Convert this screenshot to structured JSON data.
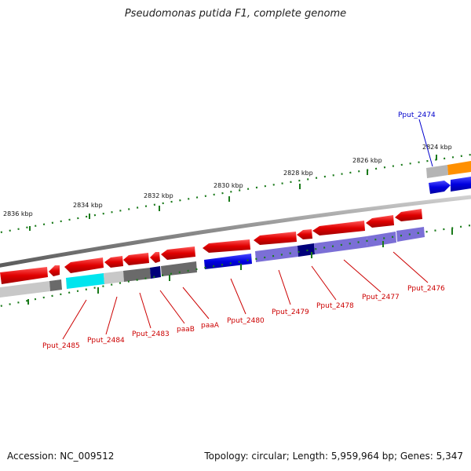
{
  "title": "Pseudomonas putida F1, complete genome",
  "footer": {
    "accession": "Accession: NC_009512",
    "summary": "Topology: circular; Length: 5,959,964 bp; Genes: 5,347"
  },
  "ruler": {
    "labels": [
      "2836 kbp",
      "2834 kbp",
      "2832 kbp",
      "2830 kbp",
      "2828 kbp",
      "2826 kbp",
      "2824 kbp"
    ]
  },
  "genes": [
    {
      "id": "Pput_2485",
      "label": "Pput_2485",
      "color": "#cc0000"
    },
    {
      "id": "Pput_2484",
      "label": "Pput_2484",
      "color": "#cc0000"
    },
    {
      "id": "Pput_2483",
      "label": "Pput_2483",
      "color": "#cc0000"
    },
    {
      "id": "paaB",
      "label": "paaB",
      "color": "#cc0000"
    },
    {
      "id": "paaA",
      "label": "paaA",
      "color": "#cc0000"
    },
    {
      "id": "Pput_2480",
      "label": "Pput_2480",
      "color": "#cc0000"
    },
    {
      "id": "Pput_2479",
      "label": "Pput_2479",
      "color": "#cc0000"
    },
    {
      "id": "Pput_2478",
      "label": "Pput_2478",
      "color": "#cc0000"
    },
    {
      "id": "Pput_2477",
      "label": "Pput_2477",
      "color": "#cc0000"
    },
    {
      "id": "Pput_2476",
      "label": "Pput_2476",
      "color": "#cc0000"
    },
    {
      "id": "Pput_2474",
      "label": "Pput_2474",
      "color": "#0000cc"
    }
  ],
  "colors": {
    "forward_cds": "#e8101c",
    "reverse_cds": "#0a0ae0",
    "cog_cyan": "#00e5ee",
    "cog_lightgray": "#c8c8c8",
    "cog_darkgray": "#6a6a6a",
    "cog_navy": "#00007a",
    "cog_purple": "#7b6fd6",
    "cog_orange": "#ff9000",
    "backbone": "#8a8a8a",
    "tick": "#1a7a1a"
  }
}
